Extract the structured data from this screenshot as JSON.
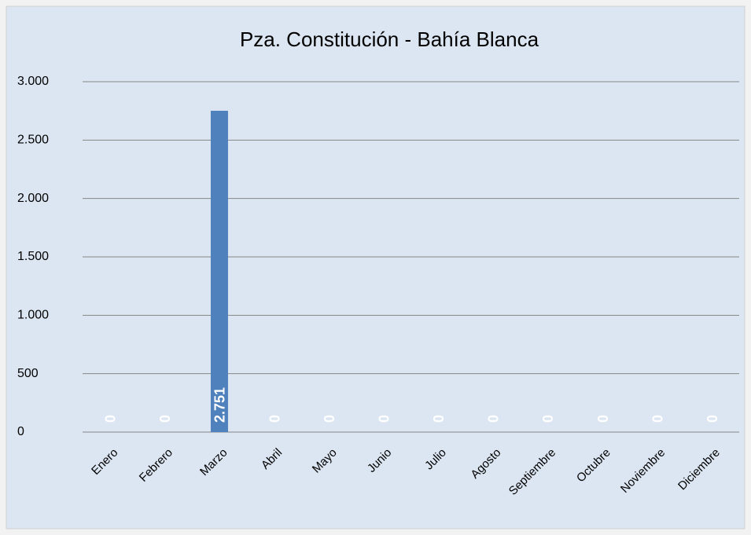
{
  "chart_data": {
    "type": "bar",
    "title": "Pza. Constitución - Bahía Blanca",
    "categories": [
      "Enero",
      "Febrero",
      "Marzo",
      "Abril",
      "Mayo",
      "Junio",
      "Julio",
      "Agosto",
      "Septiembre",
      "Octubre",
      "Noviembre",
      "Diciembre"
    ],
    "values": [
      0,
      0,
      2751,
      0,
      0,
      0,
      0,
      0,
      0,
      0,
      0,
      0
    ],
    "value_labels": [
      "0",
      "0",
      "2.751",
      "0",
      "0",
      "0",
      "0",
      "0",
      "0",
      "0",
      "0",
      "0"
    ],
    "color": "#4f81bd",
    "ylim": [
      0,
      3000
    ],
    "yticks": [
      0,
      500,
      {
        "value": 1000,
        "label": "1.000"
      },
      {
        "value": 1500,
        "label": "1.500"
      },
      {
        "value": 2000,
        "label": "2.000"
      },
      {
        "value": 2500,
        "label": "2.500"
      },
      {
        "value": 3000,
        "label": "3.000"
      }
    ],
    "grid": true
  }
}
